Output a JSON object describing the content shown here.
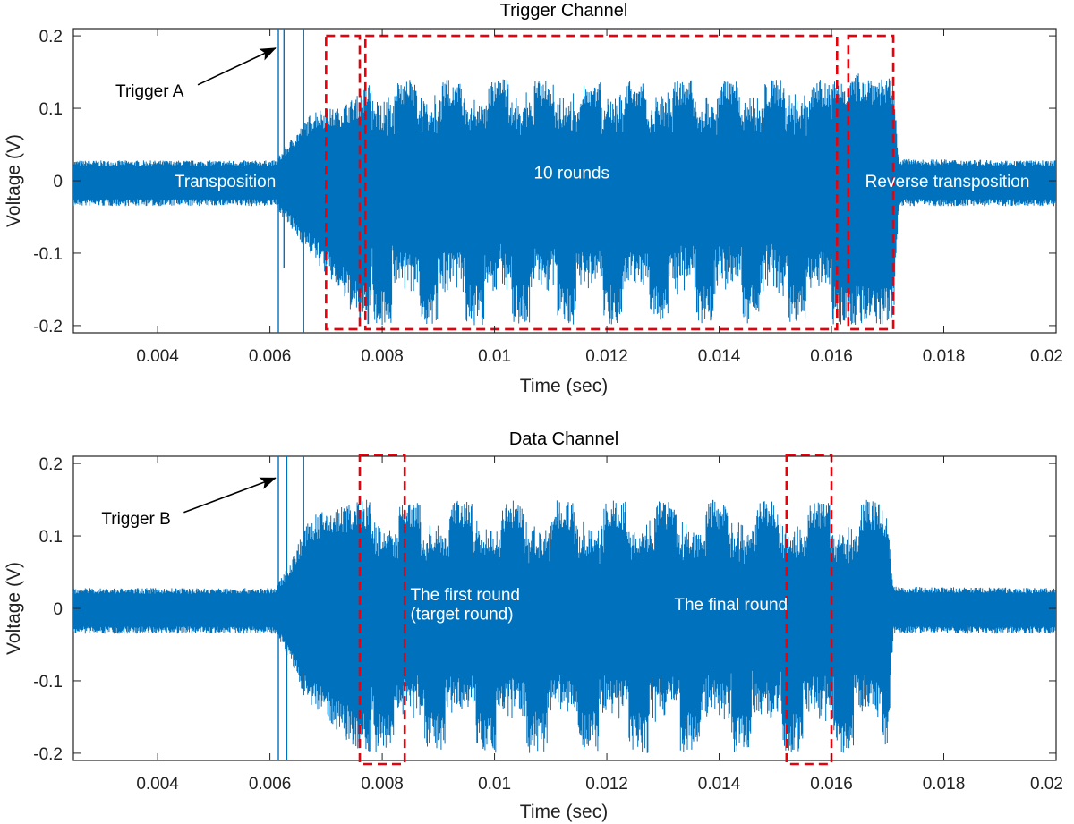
{
  "chart_data": [
    {
      "type": "line",
      "title": "Trigger Channel",
      "xlabel": "Time (sec)",
      "ylabel": "Voltage (V)",
      "xlim": [
        0.0025,
        0.02
      ],
      "ylim": [
        -0.21,
        0.21
      ],
      "x_ticks": [
        0.004,
        0.006,
        0.008,
        0.01,
        0.012,
        0.014,
        0.016,
        0.018,
        0.02
      ],
      "x_tick_labels": [
        "0.004",
        "0.006",
        "0.008",
        "0.01",
        "0.012",
        "0.014",
        "0.016",
        "0.018",
        "0.02"
      ],
      "y_ticks": [
        0.2,
        0.1,
        0,
        -0.1,
        -0.2
      ],
      "y_tick_labels": [
        "0.2",
        "0.1",
        "0",
        "-0.1",
        "-0.2"
      ],
      "grid": false,
      "line_color": "#0072bd",
      "envelope": {
        "time": [
          0.0025,
          0.0061,
          0.0064,
          0.0067,
          0.0068,
          0.0072,
          0.0076,
          0.0078,
          0.0163,
          0.0165,
          0.0171,
          0.0172,
          0.02
        ],
        "upper": [
          0.028,
          0.028,
          0.06,
          0.09,
          0.1,
          0.1,
          0.12,
          0.14,
          0.14,
          0.15,
          0.14,
          0.03,
          0.028
        ],
        "lower": [
          -0.035,
          -0.035,
          -0.07,
          -0.1,
          -0.11,
          -0.15,
          -0.2,
          -0.2,
          -0.2,
          -0.2,
          -0.2,
          -0.035,
          -0.035
        ]
      },
      "spikes": [
        {
          "x": 0.00615,
          "y_max": 0.21,
          "y_min": -0.21
        },
        {
          "x": 0.00625,
          "y_max": 0.21,
          "y_min": -0.12
        },
        {
          "x": 0.0066,
          "y_max": 0.21,
          "y_min": -0.21
        }
      ],
      "rounds": {
        "count": 10,
        "start": 0.0078,
        "end": 0.016
      },
      "annotations": [
        {
          "text": "Trigger A",
          "x": 0.00325,
          "y": 0.125,
          "arrow_to": [
            0.0061,
            0.183
          ]
        },
        {
          "text": "Transposition",
          "x": 0.0043,
          "y": 0.0
        },
        {
          "text": "10 rounds",
          "x": 0.0107,
          "y": 0.012
        },
        {
          "text": "Reverse transposition",
          "x": 0.0166,
          "y": 0.0
        }
      ],
      "boxes": [
        {
          "x0": 0.007,
          "x1": 0.0076,
          "y0": -0.205,
          "y1": 0.2
        },
        {
          "x0": 0.0077,
          "x1": 0.0161,
          "y0": -0.205,
          "y1": 0.2
        },
        {
          "x0": 0.0163,
          "x1": 0.0171,
          "y0": -0.205,
          "y1": 0.2
        }
      ]
    },
    {
      "type": "line",
      "title": "Data Channel",
      "xlabel": "Time (sec)",
      "ylabel": "Voltage (V)",
      "xlim": [
        0.0025,
        0.02
      ],
      "ylim": [
        -0.21,
        0.21
      ],
      "x_ticks": [
        0.004,
        0.006,
        0.008,
        0.01,
        0.012,
        0.014,
        0.016,
        0.018,
        0.02
      ],
      "x_tick_labels": [
        "0.004",
        "0.006",
        "0.008",
        "0.01",
        "0.012",
        "0.014",
        "0.016",
        "0.018",
        "0.02"
      ],
      "y_ticks": [
        0.2,
        0.1,
        0,
        -0.1,
        -0.2
      ],
      "y_tick_labels": [
        "0.2",
        "0.1",
        "0",
        "-0.1",
        "-0.2"
      ],
      "grid": false,
      "line_color": "#0072bd",
      "envelope": {
        "time": [
          0.0025,
          0.0061,
          0.0064,
          0.0066,
          0.0068,
          0.0072,
          0.0076,
          0.0078,
          0.0166,
          0.0168,
          0.017,
          0.0171,
          0.02
        ],
        "upper": [
          0.028,
          0.028,
          0.07,
          0.11,
          0.13,
          0.14,
          0.15,
          0.15,
          0.15,
          0.15,
          0.13,
          0.03,
          0.028
        ],
        "lower": [
          -0.035,
          -0.035,
          -0.08,
          -0.12,
          -0.14,
          -0.17,
          -0.2,
          -0.2,
          -0.2,
          -0.2,
          -0.2,
          -0.035,
          -0.035
        ]
      },
      "spikes": [
        {
          "x": 0.00615,
          "y_max": 0.21,
          "y_min": -0.21
        },
        {
          "x": 0.0063,
          "y_max": 0.21,
          "y_min": -0.21
        },
        {
          "x": 0.0066,
          "y_max": 0.21,
          "y_min": -0.12
        }
      ],
      "rounds": {
        "count": 10,
        "start": 0.0078,
        "end": 0.0169
      },
      "annotations": [
        {
          "text": "Trigger B",
          "x": 0.003,
          "y": 0.125,
          "arrow_to": [
            0.0061,
            0.18
          ]
        },
        {
          "text": "The first round",
          "x": 0.0085,
          "y": 0.02
        },
        {
          "text": "(target round)",
          "x": 0.0085,
          "y": -0.007
        },
        {
          "text": "The final round",
          "x": 0.0132,
          "y": 0.006
        }
      ],
      "boxes": [
        {
          "x0": 0.0076,
          "x1": 0.0084,
          "y0": -0.215,
          "y1": 0.212
        },
        {
          "x0": 0.0152,
          "x1": 0.016,
          "y0": -0.215,
          "y1": 0.212
        }
      ]
    }
  ]
}
